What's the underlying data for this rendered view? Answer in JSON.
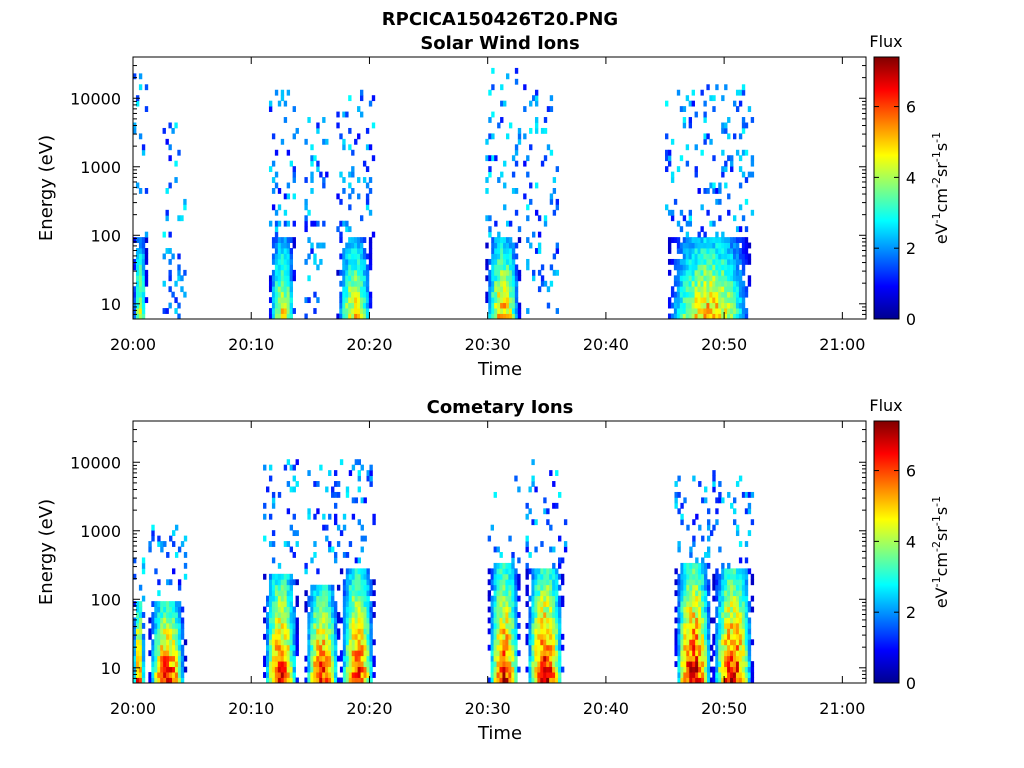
{
  "figure": {
    "title": "RPCICA150426T20.PNG"
  },
  "colormap": [
    "#00008f",
    "#0000ff",
    "#0080ff",
    "#00ffff",
    "#80ff80",
    "#ffff00",
    "#ff8000",
    "#ff0000",
    "#800000"
  ],
  "chart_data": [
    {
      "type": "heatmap",
      "title": "Solar Wind Ions",
      "xlabel": "Time",
      "ylabel": "Energy (eV)",
      "yscale": "log",
      "ylim": [
        6,
        40000
      ],
      "xticks": [
        "20:00",
        "20:10",
        "20:20",
        "20:30",
        "20:40",
        "20:50",
        "21:00"
      ],
      "xlim_minutes": [
        0,
        62
      ],
      "yticks": [
        "10",
        "100",
        "1000",
        "10000"
      ],
      "colorbar": {
        "title": "Flux",
        "label": "eV-1cm-2sr-1s-1",
        "ticks": [
          "0",
          "2",
          "4",
          "6"
        ],
        "range": [
          0,
          7.4
        ]
      },
      "grid": false,
      "bursts": [
        {
          "t_start": 0.0,
          "t_end": 1.2,
          "peak_flux": 4.9,
          "core_emax": 90,
          "scatter_emax": 22000
        },
        {
          "t_start": 2.5,
          "t_end": 4.5,
          "peak_flux": 2.0,
          "core_emax": 0,
          "scatter_emax": 5000
        },
        {
          "t_start": 11.5,
          "t_end": 13.8,
          "peak_flux": 5.2,
          "core_emax": 90,
          "scatter_emax": 14000
        },
        {
          "t_start": 14.5,
          "t_end": 16.5,
          "peak_flux": 1.8,
          "core_emax": 0,
          "scatter_emax": 7000
        },
        {
          "t_start": 17.2,
          "t_end": 20.3,
          "peak_flux": 5.3,
          "core_emax": 90,
          "scatter_emax": 14000
        },
        {
          "t_start": 29.8,
          "t_end": 32.8,
          "peak_flux": 5.8,
          "core_emax": 90,
          "scatter_emax": 27000
        },
        {
          "t_start": 33.0,
          "t_end": 36.0,
          "peak_flux": 2.0,
          "core_emax": 0,
          "scatter_emax": 15000
        },
        {
          "t_start": 45.0,
          "t_end": 52.5,
          "peak_flux": 5.8,
          "core_emax": 90,
          "scatter_emax": 16000
        }
      ]
    },
    {
      "type": "heatmap",
      "title": "Cometary Ions",
      "xlabel": "Time",
      "ylabel": "Energy (eV)",
      "yscale": "log",
      "ylim": [
        6,
        40000
      ],
      "xticks": [
        "20:00",
        "20:10",
        "20:20",
        "20:30",
        "20:40",
        "20:50",
        "21:00"
      ],
      "xlim_minutes": [
        0,
        62
      ],
      "yticks": [
        "10",
        "100",
        "1000",
        "10000"
      ],
      "colorbar": {
        "title": "Flux",
        "label": "eV-1cm-2sr-1s-1",
        "ticks": [
          "0",
          "2",
          "4",
          "6"
        ],
        "range": [
          0,
          7.4
        ]
      },
      "grid": false,
      "bursts": [
        {
          "t_start": 0.0,
          "t_end": 1.0,
          "peak_flux": 6.8,
          "core_emax": 90,
          "scatter_emax": 600
        },
        {
          "t_start": 1.3,
          "t_end": 4.5,
          "peak_flux": 7.2,
          "core_emax": 90,
          "scatter_emax": 1200
        },
        {
          "t_start": 11.0,
          "t_end": 14.0,
          "peak_flux": 6.8,
          "core_emax": 250,
          "scatter_emax": 11000
        },
        {
          "t_start": 14.5,
          "t_end": 17.5,
          "peak_flux": 7.0,
          "core_emax": 150,
          "scatter_emax": 9000
        },
        {
          "t_start": 17.5,
          "t_end": 20.5,
          "peak_flux": 6.8,
          "core_emax": 280,
          "scatter_emax": 11000
        },
        {
          "t_start": 30.0,
          "t_end": 32.8,
          "peak_flux": 6.8,
          "core_emax": 350,
          "scatter_emax": 7000
        },
        {
          "t_start": 33.2,
          "t_end": 36.5,
          "peak_flux": 7.3,
          "core_emax": 280,
          "scatter_emax": 11000
        },
        {
          "t_start": 45.8,
          "t_end": 49.0,
          "peak_flux": 7.4,
          "core_emax": 350,
          "scatter_emax": 8000
        },
        {
          "t_start": 49.0,
          "t_end": 52.5,
          "peak_flux": 7.2,
          "core_emax": 300,
          "scatter_emax": 8000
        }
      ]
    }
  ]
}
